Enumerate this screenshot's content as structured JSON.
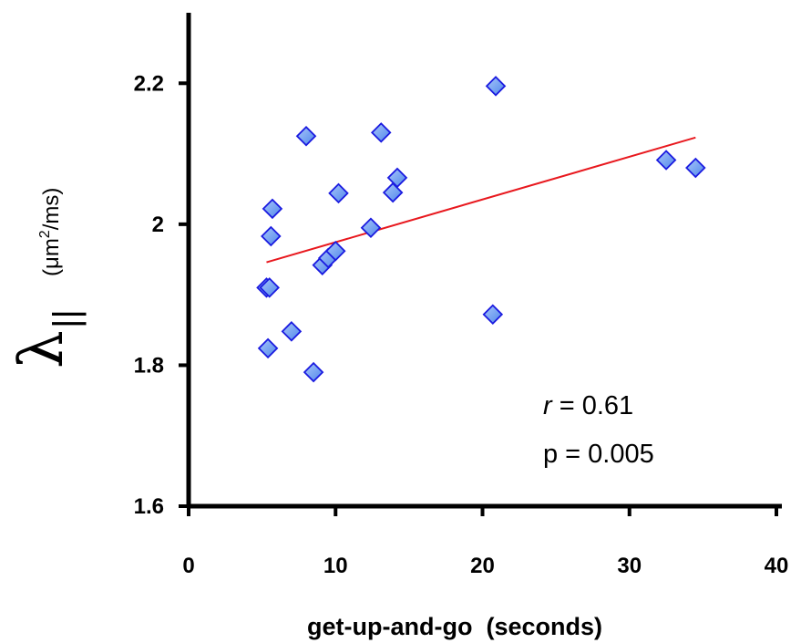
{
  "chart_data": {
    "type": "scatter",
    "xlabel": "get-up-and-go  (seconds)",
    "ylabel": {
      "symbol": "λ",
      "subscript": "||",
      "unit": "(μm",
      "unit_sup": "2",
      "unit_end": "/ms)"
    },
    "xlim": [
      0,
      40
    ],
    "ylim": [
      1.6,
      2.3
    ],
    "x_ticks": [
      0,
      10,
      20,
      30,
      40
    ],
    "x_tick_labels": [
      "0",
      "10",
      "20",
      "30",
      "40"
    ],
    "y_ticks": [
      1.6,
      1.8,
      2.0,
      2.2
    ],
    "y_tick_labels": [
      "1.6",
      "1.8",
      "2",
      "2.2"
    ],
    "grid": false,
    "points": [
      {
        "x": 5.3,
        "y": 1.91
      },
      {
        "x": 5.5,
        "y": 1.91
      },
      {
        "x": 5.4,
        "y": 1.824
      },
      {
        "x": 5.6,
        "y": 1.983
      },
      {
        "x": 5.7,
        "y": 2.022
      },
      {
        "x": 7.0,
        "y": 1.848
      },
      {
        "x": 8.0,
        "y": 2.125
      },
      {
        "x": 8.5,
        "y": 1.79
      },
      {
        "x": 9.1,
        "y": 1.942
      },
      {
        "x": 9.5,
        "y": 1.952
      },
      {
        "x": 10.0,
        "y": 1.962
      },
      {
        "x": 10.2,
        "y": 2.044
      },
      {
        "x": 12.4,
        "y": 1.995
      },
      {
        "x": 13.1,
        "y": 2.13
      },
      {
        "x": 13.9,
        "y": 2.045
      },
      {
        "x": 14.2,
        "y": 2.066
      },
      {
        "x": 20.7,
        "y": 1.872
      },
      {
        "x": 20.9,
        "y": 2.196
      },
      {
        "x": 32.5,
        "y": 2.091
      },
      {
        "x": 34.5,
        "y": 2.08
      }
    ],
    "trendline": {
      "x": [
        5.3,
        34.5
      ],
      "y": [
        1.946,
        2.123
      ]
    },
    "annotations": {
      "r_label": "r",
      "r_value": " = 0.61",
      "p_text": "p = 0.005"
    },
    "colors": {
      "marker_fill": "#6FA0F0",
      "marker_edge": "#1A1AE0",
      "trendline": "#E8181E",
      "axis": "#000000"
    }
  }
}
